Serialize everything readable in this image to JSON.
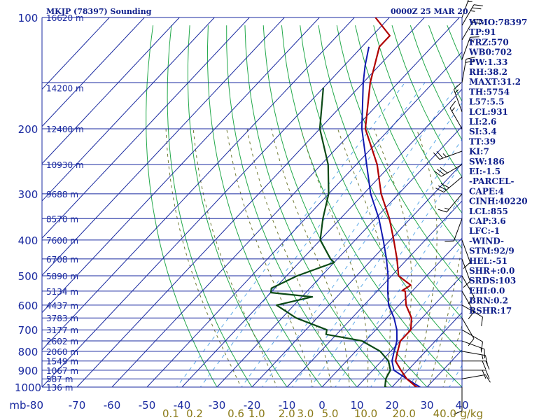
{
  "header": {
    "station": "MKJP (78397) Sounding",
    "time": "0000Z 25 MAR 20"
  },
  "stats": [
    "WMO:78397",
    "TP:91",
    "FRZ:570",
    "WB0:702",
    "PW:1.33",
    "RH:38.2",
    "MAXT:31.2",
    "TH:5754",
    "L57:5.5",
    "LCL:931",
    "LI:2.6",
    "SI:3.4",
    "TT:39",
    "KI:7",
    "SW:186",
    "EI:-1.5",
    "-PARCEL-",
    "CAPE:4",
    "CINH:40220",
    "LCL:855",
    "CAP:3.6",
    "LFC:-1",
    "-WIND-",
    "STM:92/9",
    "HEL:-51",
    "SHR+:0.0",
    "SRDS:103",
    "EHI:0.0",
    "BRN:0.2",
    "BSHR:17"
  ],
  "colors": {
    "grid": "#1a2aa0",
    "dry_adiabat": "#22a84a",
    "moist_adiabat": "#6f7a33",
    "mixing_ratio": "#5aa8e8",
    "temperature": "#b00000",
    "dewpoint": "#0b4a16",
    "parcel": "#1018b0",
    "mixing_label": "#8a7a18"
  },
  "chart_data": {
    "type": "line",
    "title": "MKJP (78397) Sounding",
    "subtitle": "0000Z 25 MAR 20",
    "xlabel": "",
    "ylabel": "",
    "pressure_axis_unit": "mb",
    "pressure_ticks": [
      100,
      200,
      300,
      400,
      500,
      600,
      700,
      800,
      900,
      1000
    ],
    "temperature_ticks": [
      -80,
      -70,
      -60,
      -50,
      -40,
      -30,
      -20,
      -10,
      0,
      10,
      20,
      30,
      40
    ],
    "temperature_ticks_text": [
      "mb-80",
      "-70",
      "-60",
      "-50",
      "-40",
      "-30",
      "-20",
      "-10",
      "0",
      "10",
      "20",
      "30",
      "40"
    ],
    "xlim": [
      -80,
      40
    ],
    "ylim": [
      1000,
      100
    ],
    "mixing_ratio_labels": [
      "0.1",
      "0.2",
      "0.6",
      "1.0",
      "2.0",
      "3.0",
      "5.0",
      "10.0",
      "20.0",
      "40.0"
    ],
    "mixing_ratio_unit": "g/kg",
    "height_labels": [
      {
        "p": 100,
        "text": "16620 m"
      },
      {
        "p": 155,
        "text": "14200 m"
      },
      {
        "p": 200,
        "text": "12400 m"
      },
      {
        "p": 250,
        "text": "10930 m"
      },
      {
        "p": 300,
        "text": "9688 m"
      },
      {
        "p": 350,
        "text": "8570 m"
      },
      {
        "p": 400,
        "text": "7600 m"
      },
      {
        "p": 450,
        "text": "6708 m"
      },
      {
        "p": 500,
        "text": "5890 m"
      },
      {
        "p": 550,
        "text": "5134 m"
      },
      {
        "p": 600,
        "text": "4437 m"
      },
      {
        "p": 650,
        "text": "3783 m"
      },
      {
        "p": 700,
        "text": "3177 m"
      },
      {
        "p": 750,
        "text": "2602 m"
      },
      {
        "p": 800,
        "text": "2060 m"
      },
      {
        "p": 850,
        "text": "1549 m"
      },
      {
        "p": 900,
        "text": "1067 m"
      },
      {
        "p": 950,
        "text": "587 m"
      },
      {
        "p": 1000,
        "text": "136 m"
      }
    ],
    "series": [
      {
        "key": "temperature",
        "points": [
          [
            1010,
            29
          ],
          [
            1000,
            27
          ],
          [
            950,
            22
          ],
          [
            900,
            18
          ],
          [
            850,
            14
          ],
          [
            800,
            12
          ],
          [
            750,
            10
          ],
          [
            700,
            10
          ],
          [
            650,
            7
          ],
          [
            600,
            2
          ],
          [
            550,
            -2
          ],
          [
            548,
            -3
          ],
          [
            530,
            -2
          ],
          [
            500,
            -8
          ],
          [
            450,
            -13
          ],
          [
            400,
            -19
          ],
          [
            350,
            -26
          ],
          [
            300,
            -35
          ],
          [
            250,
            -44
          ],
          [
            200,
            -57
          ],
          [
            150,
            -68
          ],
          [
            120,
            -75
          ],
          [
            112,
            -75
          ],
          [
            100,
            -84
          ]
        ]
      },
      {
        "key": "dewpoint",
        "points": [
          [
            1010,
            21
          ],
          [
            1000,
            18
          ],
          [
            950,
            16
          ],
          [
            900,
            15
          ],
          [
            850,
            12
          ],
          [
            800,
            7
          ],
          [
            750,
            -1
          ],
          [
            720,
            -13
          ],
          [
            700,
            -14
          ],
          [
            650,
            -26
          ],
          [
            600,
            -35
          ],
          [
            570,
            -27
          ],
          [
            555,
            -40
          ],
          [
            540,
            -41
          ],
          [
            500,
            -37
          ],
          [
            460,
            -30
          ],
          [
            450,
            -32
          ],
          [
            400,
            -40
          ],
          [
            350,
            -45
          ],
          [
            300,
            -50
          ],
          [
            250,
            -58
          ],
          [
            200,
            -70
          ],
          [
            155,
            -80
          ]
        ]
      },
      {
        "key": "parcel",
        "points": [
          [
            1010,
            29
          ],
          [
            1000,
            28
          ],
          [
            950,
            22
          ],
          [
            900,
            16
          ],
          [
            850,
            13
          ],
          [
            800,
            11
          ],
          [
            750,
            9
          ],
          [
            700,
            6
          ],
          [
            650,
            2
          ],
          [
            600,
            -3
          ],
          [
            550,
            -7
          ],
          [
            500,
            -11
          ],
          [
            450,
            -16
          ],
          [
            400,
            -22
          ],
          [
            350,
            -29
          ],
          [
            300,
            -38
          ],
          [
            250,
            -47
          ],
          [
            200,
            -58
          ],
          [
            150,
            -70
          ],
          [
            135,
            -74
          ],
          [
            120,
            -78
          ]
        ]
      }
    ],
    "wind_barbs": [
      {
        "p": 1000,
        "dir": 180,
        "spd": 10
      },
      {
        "p": 950,
        "dir": 80,
        "spd": 10
      },
      {
        "p": 900,
        "dir": 90,
        "spd": 20
      },
      {
        "p": 850,
        "dir": 90,
        "spd": 20
      },
      {
        "p": 800,
        "dir": 100,
        "spd": 15
      },
      {
        "p": 750,
        "dir": 110,
        "spd": 15
      },
      {
        "p": 700,
        "dir": 120,
        "spd": 10
      },
      {
        "p": 650,
        "dir": 150,
        "spd": 10
      },
      {
        "p": 600,
        "dir": 120,
        "spd": 10
      },
      {
        "p": 550,
        "dir": 150,
        "spd": 10
      },
      {
        "p": 500,
        "dir": 150,
        "spd": 10
      },
      {
        "p": 450,
        "dir": 160,
        "spd": 10
      },
      {
        "p": 400,
        "dir": 160,
        "spd": 10
      },
      {
        "p": 350,
        "dir": 200,
        "spd": 10
      },
      {
        "p": 300,
        "dir": 220,
        "spd": 15
      },
      {
        "p": 270,
        "dir": 230,
        "spd": 30
      },
      {
        "p": 250,
        "dir": 240,
        "spd": 30
      },
      {
        "p": 230,
        "dir": 250,
        "spd": 25
      },
      {
        "p": 200,
        "dir": 330,
        "spd": 15
      },
      {
        "p": 180,
        "dir": 340,
        "spd": 15
      },
      {
        "p": 150,
        "dir": 10,
        "spd": 20
      },
      {
        "p": 130,
        "dir": 20,
        "spd": 15
      },
      {
        "p": 115,
        "dir": 30,
        "spd": 20
      },
      {
        "p": 105,
        "dir": 30,
        "spd": 25
      },
      {
        "p": 100,
        "dir": 20,
        "spd": 25
      }
    ]
  }
}
